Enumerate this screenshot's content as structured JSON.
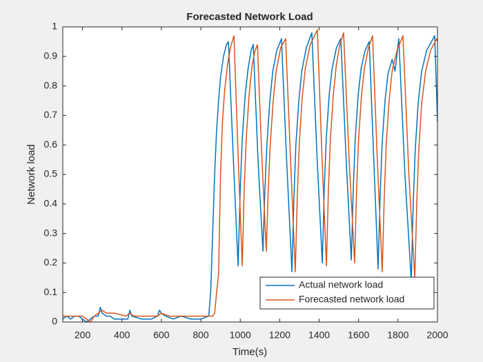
{
  "chart_data": {
    "type": "line",
    "title": "Forecasted Network Load",
    "xlabel": "Time(s)",
    "ylabel": "Network load",
    "xlim": [
      100,
      2000
    ],
    "xticks": [
      200,
      400,
      600,
      800,
      1000,
      1200,
      1400,
      1600,
      1800,
      2000
    ],
    "ylim": [
      0,
      1
    ],
    "yticks": [
      0,
      0.1,
      0.2,
      0.3,
      0.4,
      0.5,
      0.6,
      0.7,
      0.8,
      0.9,
      1
    ],
    "legend": "lower right",
    "series": [
      {
        "name": "Actual network load",
        "color": "#0072bd",
        "x": [
          100,
          120,
          140,
          160,
          180,
          200,
          220,
          240,
          260,
          280,
          290,
          300,
          320,
          340,
          360,
          400,
          430,
          440,
          450,
          500,
          550,
          580,
          590,
          600,
          620,
          660,
          700,
          750,
          800,
          840,
          850,
          860,
          870,
          880,
          890,
          900,
          915,
          930,
          940,
          965,
          989,
          1000,
          1010,
          1025,
          1040,
          1055,
          1066,
          1090,
          1115,
          1125,
          1135,
          1150,
          1165,
          1185,
          1209,
          1235,
          1262,
          1272,
          1282,
          1297,
          1312,
          1335,
          1363,
          1390,
          1416,
          1426,
          1436,
          1451,
          1466,
          1488,
          1510,
          1537,
          1563,
          1573,
          1583,
          1598,
          1613,
          1633,
          1654,
          1677,
          1699,
          1709,
          1719,
          1734,
          1749,
          1770,
          1785,
          1804,
          1835,
          1867,
          1877,
          1887,
          1902,
          1920,
          1945,
          1986,
          2000
        ],
        "values": [
          0.01,
          0.02,
          0.01,
          0.02,
          0.02,
          0.01,
          0.0,
          0.01,
          0.02,
          0.02,
          0.05,
          0.03,
          0.02,
          0.02,
          0.01,
          0.01,
          0.01,
          0.04,
          0.02,
          0.01,
          0.01,
          0.02,
          0.04,
          0.03,
          0.02,
          0.01,
          0.02,
          0.01,
          0.01,
          0.02,
          0.1,
          0.3,
          0.5,
          0.65,
          0.75,
          0.83,
          0.9,
          0.94,
          0.95,
          0.55,
          0.19,
          0.45,
          0.62,
          0.77,
          0.86,
          0.92,
          0.94,
          0.55,
          0.24,
          0.45,
          0.6,
          0.75,
          0.85,
          0.92,
          0.96,
          0.55,
          0.17,
          0.42,
          0.6,
          0.75,
          0.85,
          0.93,
          0.98,
          0.55,
          0.2,
          0.45,
          0.62,
          0.77,
          0.86,
          0.93,
          0.96,
          0.55,
          0.21,
          0.45,
          0.62,
          0.77,
          0.86,
          0.92,
          0.95,
          0.55,
          0.18,
          0.42,
          0.6,
          0.75,
          0.84,
          0.89,
          0.85,
          0.96,
          0.5,
          0.14,
          0.4,
          0.58,
          0.74,
          0.85,
          0.92,
          0.97,
          0.68
        ]
      },
      {
        "name": "Forecasted network load",
        "color": "#d95319",
        "x": [
          100,
          200,
          220,
          240,
          260,
          280,
          300,
          320,
          360,
          420,
          440,
          460,
          540,
          580,
          600,
          640,
          700,
          800,
          860,
          870,
          880,
          890,
          900,
          910,
          920,
          935,
          950,
          968,
          990,
          1010,
          1020,
          1030,
          1045,
          1060,
          1075,
          1087,
          1110,
          1132,
          1142,
          1152,
          1167,
          1182,
          1205,
          1230,
          1255,
          1279,
          1289,
          1299,
          1314,
          1330,
          1355,
          1391,
          1415,
          1437,
          1447,
          1457,
          1472,
          1487,
          1505,
          1524,
          1552,
          1580,
          1590,
          1600,
          1615,
          1630,
          1650,
          1671,
          1695,
          1720,
          1730,
          1740,
          1755,
          1770,
          1795,
          1825,
          1855,
          1885,
          1895,
          1905,
          1920,
          1940,
          1965,
          1996,
          2000
        ],
        "values": [
          0.02,
          0.02,
          0.01,
          0.0,
          0.02,
          0.03,
          0.04,
          0.03,
          0.03,
          0.02,
          0.03,
          0.02,
          0.02,
          0.02,
          0.03,
          0.02,
          0.02,
          0.02,
          0.02,
          0.03,
          0.1,
          0.16,
          0.5,
          0.68,
          0.78,
          0.87,
          0.93,
          0.97,
          0.55,
          0.19,
          0.45,
          0.62,
          0.77,
          0.87,
          0.92,
          0.94,
          0.55,
          0.24,
          0.45,
          0.6,
          0.75,
          0.85,
          0.93,
          0.96,
          0.55,
          0.17,
          0.42,
          0.6,
          0.76,
          0.86,
          0.94,
          0.99,
          0.55,
          0.19,
          0.45,
          0.62,
          0.77,
          0.87,
          0.94,
          0.98,
          0.55,
          0.2,
          0.45,
          0.62,
          0.77,
          0.86,
          0.93,
          0.97,
          0.55,
          0.17,
          0.42,
          0.6,
          0.75,
          0.85,
          0.92,
          0.97,
          0.5,
          0.15,
          0.4,
          0.58,
          0.74,
          0.85,
          0.92,
          0.96,
          0.95
        ]
      }
    ]
  }
}
